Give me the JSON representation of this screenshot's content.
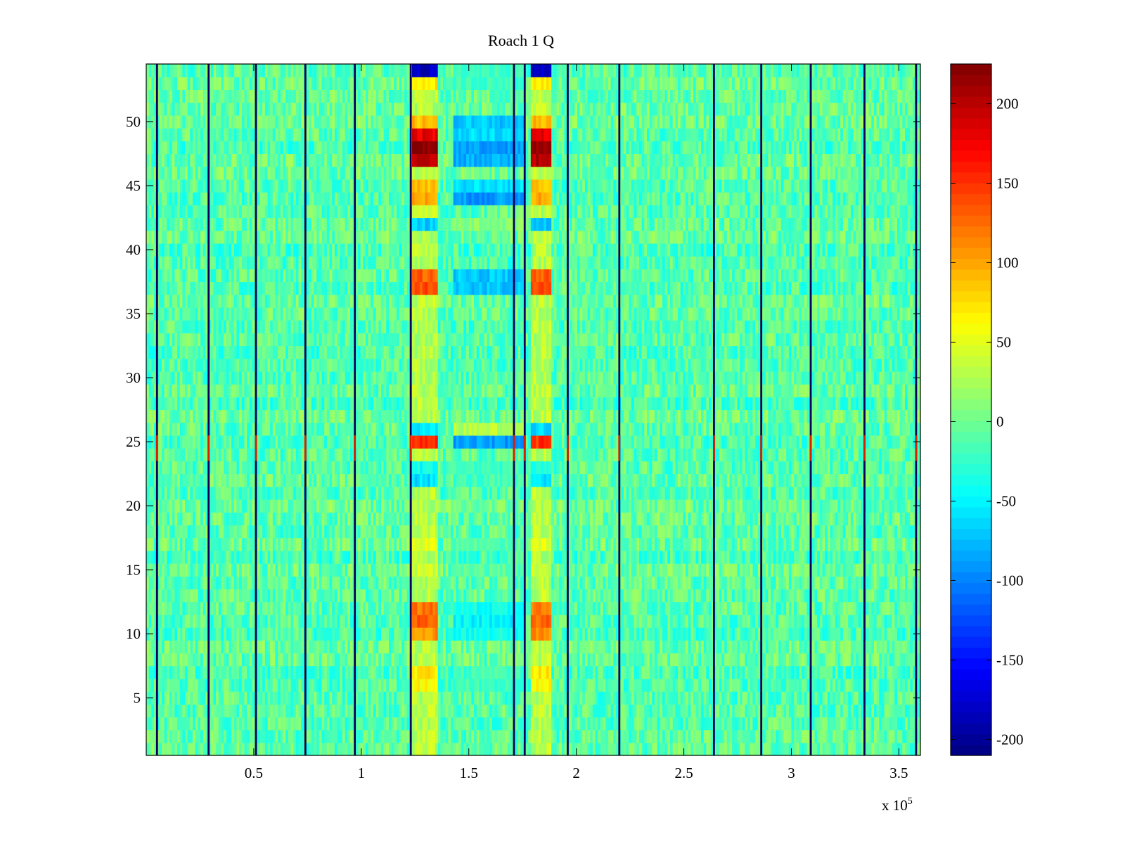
{
  "chart_data": {
    "type": "heatmap",
    "title": "Roach 1 Q",
    "xlabel": "",
    "ylabel": "",
    "x_exponent_label": "x 10",
    "x_exponent_power": "5",
    "xlim": [
      0,
      3.6
    ],
    "ylim": [
      0.5,
      54.5
    ],
    "x_ticks": [
      0.5,
      1,
      1.5,
      2,
      2.5,
      3,
      3.5
    ],
    "x_tick_labels": [
      "0.5",
      "1",
      "1.5",
      "2",
      "2.5",
      "3",
      "3.5"
    ],
    "y_ticks": [
      5,
      10,
      15,
      20,
      25,
      30,
      35,
      40,
      45,
      50
    ],
    "y_tick_labels": [
      "5",
      "10",
      "15",
      "20",
      "25",
      "30",
      "35",
      "40",
      "45",
      "50"
    ],
    "colormap": "jet",
    "color_limits": [
      -210,
      225
    ],
    "colorbar_ticks": [
      200,
      150,
      100,
      50,
      0,
      -50,
      -100,
      -150,
      -200
    ],
    "colorbar_tick_labels": [
      "200",
      "150",
      "100",
      "50",
      "0",
      "-50",
      "-100",
      "-150",
      "-200"
    ],
    "rows": 54,
    "baseline_value": -10,
    "noise_amplitude": 30,
    "vertical_artifact_columns_x": [
      0.05,
      0.29,
      0.51,
      0.74,
      0.97,
      1.23,
      1.71,
      1.76,
      1.96,
      2.2,
      2.64,
      2.86,
      3.09,
      3.34,
      3.58
    ],
    "hot_blocks_x": [
      [
        1.24,
        1.36
      ],
      [
        1.79,
        1.89
      ]
    ],
    "cold_block_x": [
      1.43,
      1.76
    ],
    "row_profile": [
      {
        "row": 6,
        "hot": 60,
        "cold": -20
      },
      {
        "row": 7,
        "hot": 70,
        "cold": -20
      },
      {
        "row": 10,
        "hot": 110,
        "cold": -40
      },
      {
        "row": 11,
        "hot": 130,
        "cold": -50
      },
      {
        "row": 12,
        "hot": 120,
        "cold": -40
      },
      {
        "row": 15,
        "hot": 40,
        "cold": -10
      },
      {
        "row": 17,
        "hot": 50,
        "cold": -10
      },
      {
        "row": 22,
        "hot": -60,
        "cold": -20
      },
      {
        "row": 23,
        "hot": -40,
        "cold": -20
      },
      {
        "row": 25,
        "hot": 150,
        "cold": -90
      },
      {
        "row": 26,
        "hot": -60,
        "cold": 30
      },
      {
        "row": 37,
        "hot": 140,
        "cold": -70
      },
      {
        "row": 38,
        "hot": 130,
        "cold": -70
      },
      {
        "row": 42,
        "hot": -70,
        "cold": 10
      },
      {
        "row": 44,
        "hot": 100,
        "cold": -90
      },
      {
        "row": 45,
        "hot": 90,
        "cold": -60
      },
      {
        "row": 47,
        "hot": 200,
        "cold": -80
      },
      {
        "row": 48,
        "hot": 220,
        "cold": -90
      },
      {
        "row": 49,
        "hot": 180,
        "cold": -60
      },
      {
        "row": 50,
        "hot": 90,
        "cold": -70
      },
      {
        "row": 53,
        "hot": 70,
        "cold": -20
      },
      {
        "row": 54,
        "hot": -180,
        "cold": -20
      }
    ]
  }
}
